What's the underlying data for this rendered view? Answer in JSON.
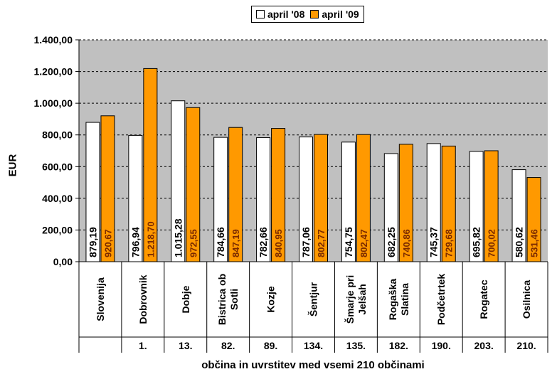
{
  "legend": {
    "series_2008": "april '08",
    "series_2009": "april '09"
  },
  "colors": {
    "series_2008": "#ffffff",
    "series_2009": "#ff9900",
    "plot_background": "#c0c0c0",
    "grid": "#000000"
  },
  "chart_data": {
    "type": "bar",
    "ylabel": "EUR",
    "xlabel": "občina in uvrstitev med vsemi 210 občinami",
    "ylim": [
      0,
      1400
    ],
    "yticks": [
      "0,00",
      "200,00",
      "400,00",
      "600,00",
      "800,00",
      "1.000,00",
      "1.200,00",
      "1.400,00"
    ],
    "ytick_values": [
      0,
      200,
      400,
      600,
      800,
      1000,
      1200,
      1400
    ],
    "grid": true,
    "legend_position": "top-center",
    "categories": [
      "Slovenija",
      "Dobrovnik",
      "Dobje",
      "Bistrica ob Sotli",
      "Kozje",
      "Šentjur",
      "Šmarje pri Jelšah",
      "Rogaška Slatina",
      "Podčetrtek",
      "Rogatec",
      "Osilnica"
    ],
    "category_lines": [
      [
        "Slovenija"
      ],
      [
        "Dobrovnik"
      ],
      [
        "Dobje"
      ],
      [
        "Bistrica ob",
        "Sotli"
      ],
      [
        "Kozje"
      ],
      [
        "Šentjur"
      ],
      [
        "Šmarje pri",
        "Jelšah"
      ],
      [
        "Rogaška",
        "Slatina"
      ],
      [
        "Podčetrtek"
      ],
      [
        "Rogatec"
      ],
      [
        "Osilnica"
      ]
    ],
    "ranks": [
      "",
      "1.",
      "13.",
      "82.",
      "89.",
      "134.",
      "135.",
      "182.",
      "190.",
      "203.",
      "210."
    ],
    "series": [
      {
        "name": "april '08",
        "values": [
          879.19,
          796.94,
          1015.28,
          784.66,
          782.66,
          787.06,
          754.75,
          682.25,
          745.37,
          695.82,
          580.62
        ],
        "labels": [
          "879,19",
          "796,94",
          "1.015,28",
          "784,66",
          "782,66",
          "787,06",
          "754,75",
          "682,25",
          "745,37",
          "695,82",
          "580,62"
        ]
      },
      {
        "name": "april '09",
        "values": [
          920.67,
          1218.7,
          972.55,
          847.19,
          840.95,
          802.77,
          802.47,
          740.86,
          729.68,
          700.02,
          531.46
        ],
        "labels": [
          "920,67",
          "1.218,70",
          "972,55",
          "847,19",
          "840,95",
          "802,77",
          "802,47",
          "740,86",
          "729,68",
          "700,02",
          "531,46"
        ]
      }
    ]
  }
}
